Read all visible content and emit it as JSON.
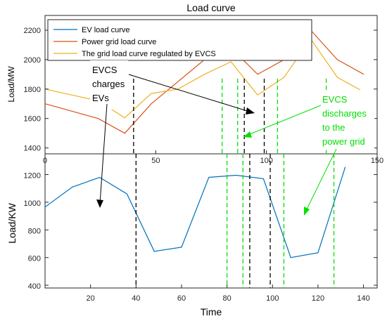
{
  "chart_data": [
    {
      "type": "line",
      "title": "Load curve",
      "xlabel": "",
      "ylabel": "Load/MW",
      "xlim": [
        0,
        150
      ],
      "ylim": [
        1360,
        2300
      ],
      "xticks": [
        0,
        50,
        100,
        150
      ],
      "yticks": [
        1400,
        1600,
        1800,
        2000,
        2200
      ],
      "legend_position": "top-left",
      "series": [
        {
          "name": "EV load curve",
          "color": "#0072BD",
          "x": [],
          "y": []
        },
        {
          "name": "Power grid load curve",
          "color": "#D95319",
          "x": [
            0,
            12,
            24,
            36,
            48,
            60,
            72,
            84,
            96,
            108,
            120,
            132,
            144
          ],
          "y": [
            1700,
            1650,
            1600,
            1500,
            1700,
            1850,
            2000,
            2080,
            1900,
            2000,
            2200,
            2000,
            1900
          ]
        },
        {
          "name": "The grid load curve regulated by EVCS",
          "color": "#EDB120",
          "x": [
            0,
            12,
            24,
            36,
            48,
            60,
            72,
            84,
            96,
            108,
            120,
            132,
            144
          ],
          "y": [
            1800,
            1760,
            1720,
            1605,
            1770,
            1800,
            1900,
            1985,
            1760,
            1880,
            2140,
            1880,
            1780
          ]
        }
      ],
      "vlines": [
        {
          "x": 40,
          "color": "#000000"
        },
        {
          "x": 80,
          "color": "#00e000"
        },
        {
          "x": 87,
          "color": "#00e000"
        },
        {
          "x": 90,
          "color": "#000000"
        },
        {
          "x": 99,
          "color": "#000000"
        },
        {
          "x": 105,
          "color": "#00e000"
        },
        {
          "x": 127,
          "color": "#00e000"
        }
      ]
    },
    {
      "type": "line",
      "title": "",
      "xlabel": "Time",
      "ylabel": "Load/KW",
      "xlim": [
        0,
        146
      ],
      "ylim": [
        380,
        1350
      ],
      "xticks": [
        20,
        40,
        60,
        80,
        100,
        120,
        140
      ],
      "yticks": [
        400,
        600,
        800,
        1000,
        1200
      ],
      "series": [
        {
          "name": "EV load curve",
          "color": "#0072BD",
          "x": [
            0,
            12,
            24,
            36,
            48,
            60,
            72,
            84,
            96,
            108,
            120,
            132
          ],
          "y": [
            965,
            1110,
            1180,
            1060,
            645,
            675,
            1180,
            1195,
            1170,
            600,
            635,
            1255
          ]
        }
      ],
      "vlines": [
        {
          "x": 40,
          "color": "#000000"
        },
        {
          "x": 80,
          "color": "#00e000"
        },
        {
          "x": 87,
          "color": "#00e000"
        },
        {
          "x": 90,
          "color": "#000000"
        },
        {
          "x": 99,
          "color": "#000000"
        },
        {
          "x": 105,
          "color": "#00e000"
        },
        {
          "x": 127,
          "color": "#00e000"
        }
      ]
    }
  ],
  "annotations": {
    "charges_line1": "EVCS",
    "charges_line2": "charges",
    "charges_line3": "EVs",
    "discharges_line1": "EVCS",
    "discharges_line2": "discharges",
    "discharges_line3": "to the",
    "discharges_line4": "power grid"
  }
}
